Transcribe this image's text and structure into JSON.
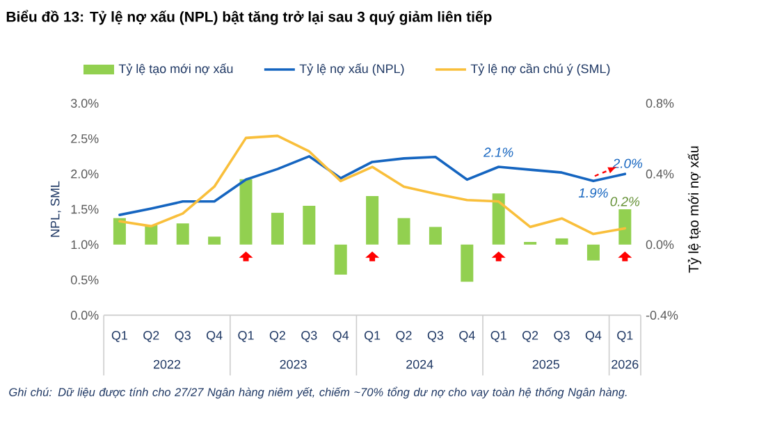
{
  "chart_data": {
    "type": "line",
    "title": "Biểu đồ 13: Tỷ lệ nợ xấu (NPL) bật tăng trở lại sau 3 quý giảm liên tiếp",
    "ylabel": "NPL, SML",
    "y2label": "Tỷ lệ tạo mới nợ xấu",
    "categories": [
      "Q1",
      "Q2",
      "Q3",
      "Q4",
      "Q1",
      "Q2",
      "Q3",
      "Q4",
      "Q1",
      "Q2",
      "Q3",
      "Q4",
      "Q1",
      "Q2",
      "Q3",
      "Q4",
      "Q1"
    ],
    "series": [
      {
        "name": "Tỷ lệ tạo mới nợ xấu",
        "type": "bar",
        "axis": "y2",
        "color": "#92d050",
        "values": [
          0.15,
          0.11,
          0.12,
          0.045,
          0.37,
          0.18,
          0.22,
          -0.17,
          0.275,
          0.15,
          0.1,
          -0.21,
          0.29,
          0.015,
          0.035,
          -0.09,
          0.2
        ],
        "value_labels": [
          null,
          null,
          null,
          null,
          null,
          null,
          null,
          null,
          null,
          null,
          null,
          null,
          null,
          null,
          null,
          null,
          "0.2%"
        ]
      },
      {
        "name": "Tỷ lệ nợ xấu (NPL)",
        "color": "#1565c0",
        "values": [
          1.42,
          1.51,
          1.61,
          1.61,
          1.92,
          2.07,
          2.25,
          1.94,
          2.17,
          2.22,
          2.24,
          1.92,
          2.1,
          2.06,
          2.02,
          1.9,
          2.0
        ],
        "value_labels": [
          null,
          null,
          null,
          null,
          null,
          null,
          null,
          null,
          null,
          null,
          null,
          null,
          "2.1%",
          null,
          null,
          "1.9%",
          "2.0%"
        ]
      },
      {
        "name": "Tỷ lệ nợ cần chú ý (SML)",
        "color": "#f9bf3b",
        "values": [
          1.33,
          1.26,
          1.44,
          1.82,
          2.51,
          2.54,
          2.32,
          1.9,
          2.1,
          1.82,
          1.72,
          1.63,
          1.61,
          1.25,
          1.37,
          1.15,
          1.23
        ]
      }
    ],
    "ylim": [
      0,
      3
    ],
    "yticks": [
      {
        "value": 0,
        "label": "0.0%"
      },
      {
        "value": 0.5,
        "label": "0.5%"
      },
      {
        "value": 1,
        "label": "1.0%"
      },
      {
        "value": 1.5,
        "label": "1.5%"
      },
      {
        "value": 2,
        "label": "2.0%"
      },
      {
        "value": 2.5,
        "label": "2.5%"
      },
      {
        "value": 3,
        "label": "3.0%"
      }
    ],
    "y2lim": [
      -0.4,
      0.8
    ],
    "y2ticks": [
      {
        "value": -0.4,
        "label": "-0.4%"
      },
      {
        "value": 0,
        "label": "0.0%"
      },
      {
        "value": 0.4,
        "label": "0.4%"
      },
      {
        "value": 0.8,
        "label": "0.8%"
      }
    ],
    "legend": "top",
    "annotations": [
      "2022",
      "2023",
      "2024",
      "2025",
      "2026",
      "Ghi chú: Dữ liệu được tính cho 27/27 Ngân hàng niêm yết, chiếm ~70% tổng dư nợ cho vay toàn hệ thống Ngân hàng."
    ]
  }
}
